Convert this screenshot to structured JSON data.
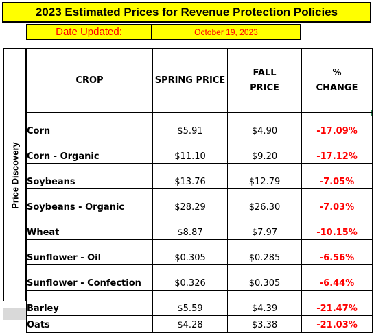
{
  "title": "2023 Estimated Prices for Revenue Protection Policies",
  "date_label": "Date Updated:",
  "date_value": "October 19, 2023",
  "side_label": "Price Discovery",
  "headers": {
    "crop": "CROP",
    "spring": "SPRING PRICE",
    "fall_line1": "FALL",
    "fall_line2": "PRICE",
    "change_line1": "%",
    "change_line2": "CHANGE"
  },
  "rows": [
    {
      "crop": "Corn",
      "spring": "$5.91",
      "fall": "$4.90",
      "change": "-17.09%"
    },
    {
      "crop": "Corn - Organic",
      "spring": "$11.10",
      "fall": "$9.20",
      "change": "-17.12%"
    },
    {
      "crop": "Soybeans",
      "spring": "$13.76",
      "fall": "$12.79",
      "change": "-7.05%"
    },
    {
      "crop": "Soybeans - Organic",
      "spring": "$28.29",
      "fall": "$26.30",
      "change": "-7.03%"
    },
    {
      "crop": "Wheat",
      "spring": "$8.87",
      "fall": "$7.97",
      "change": "-10.15%"
    },
    {
      "crop": "Sunflower - Oil",
      "spring": "$0.305",
      "fall": "$0.285",
      "change": "-6.56%"
    },
    {
      "crop": "Sunflower - Confection",
      "spring": "$0.326",
      "fall": "$0.305",
      "change": "-6.44%"
    },
    {
      "crop": "Barley",
      "spring": "$5.59",
      "fall": "$4.39",
      "change": "-21.47%"
    },
    {
      "crop": "Oats",
      "spring": "$4.28",
      "fall": "$3.38",
      "change": "-21.03%"
    }
  ],
  "colors": {
    "highlight": "#ffff00",
    "change_text": "#ff0000",
    "oats_side_fill": "#d9d9d9"
  }
}
